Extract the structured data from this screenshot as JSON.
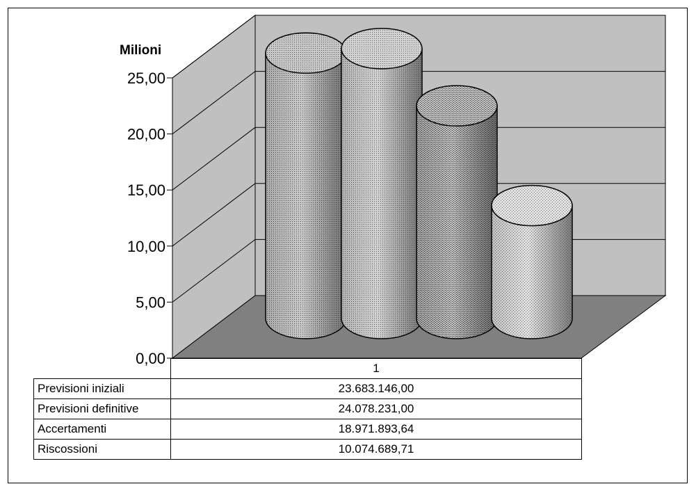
{
  "chart_data": {
    "type": "bar",
    "style": "3d-cylinder",
    "ylabel": "Milioni",
    "ylim": [
      0,
      25
    ],
    "yticks": [
      "0,00",
      "5,00",
      "10,00",
      "15,00",
      "20,00",
      "25,00"
    ],
    "categories": [
      "1"
    ],
    "series": [
      {
        "name": "Previsioni iniziali",
        "values": [
          23.683146
        ],
        "value_label": "23.683.146,00",
        "color": "#b8b8b8"
      },
      {
        "name": "Previsioni definitive",
        "values": [
          24.078231
        ],
        "value_label": "24.078.231,00",
        "color": "#c4c4c4"
      },
      {
        "name": "Accertamenti",
        "values": [
          18.97189364
        ],
        "value_label": "18.971.893,64",
        "color": "#a8a8a8"
      },
      {
        "name": "Riscossioni",
        "values": [
          10.07468971
        ],
        "value_label": "10.074.689,71",
        "color": "#d6d6d6"
      }
    ],
    "grid": true,
    "legend": "data-table-below"
  }
}
